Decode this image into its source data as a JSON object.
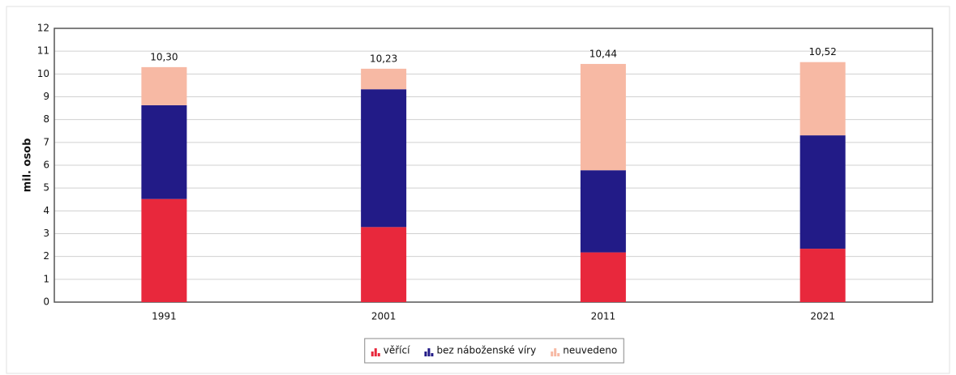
{
  "chart_data": {
    "type": "stacked_bar",
    "y_label": "mil. osob",
    "categories": [
      "1991",
      "2001",
      "2011",
      "2021"
    ],
    "series": [
      {
        "name": "věřící",
        "color": "#e8283c",
        "values": [
          4.52,
          3.29,
          2.18,
          2.34
        ]
      },
      {
        "name": "bez náboženské víry",
        "color": "#221b87",
        "values": [
          4.11,
          6.04,
          3.6,
          4.97
        ]
      },
      {
        "name": "neuvedeno",
        "color": "#f7b9a4",
        "values": [
          1.67,
          0.9,
          4.66,
          3.21
        ]
      }
    ],
    "totals": [
      10.3,
      10.23,
      10.44,
      10.52
    ],
    "total_labels": [
      "10,30",
      "10,23",
      "10,44",
      "10,52"
    ],
    "ylim": [
      0,
      12
    ],
    "yticks": [
      0,
      1,
      2,
      3,
      4,
      5,
      6,
      7,
      8,
      9,
      10,
      11,
      12
    ],
    "grid": true,
    "legend": "bottom"
  }
}
